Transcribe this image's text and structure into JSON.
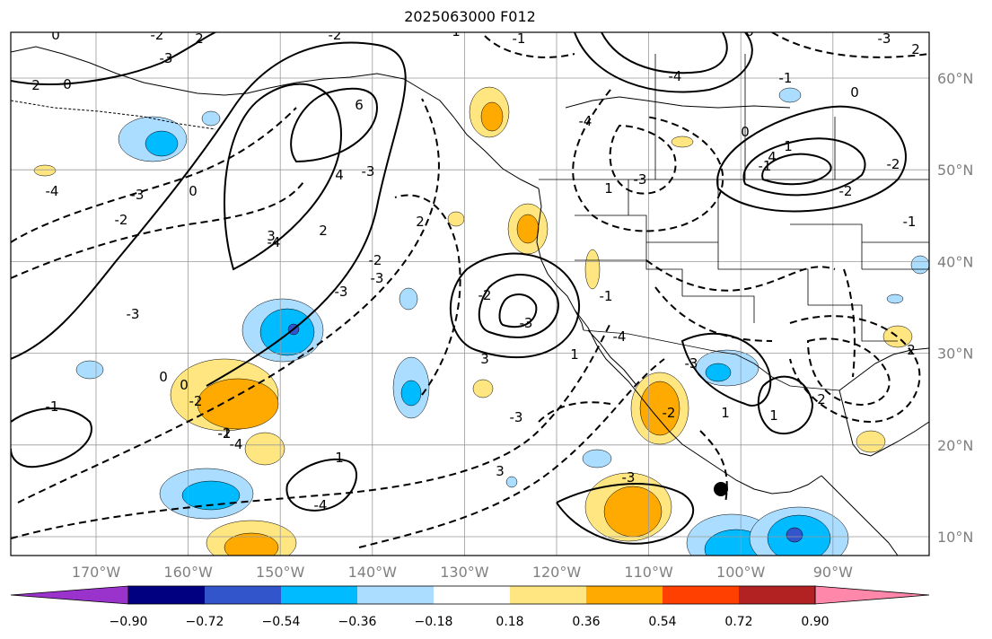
{
  "title": "2025063000 F012",
  "map": {
    "projection": "cylindrical lat-lon",
    "lon_range": [
      "180°W",
      "80°W"
    ],
    "lat_range": [
      "8°N",
      "65°N"
    ],
    "lon_ticks": [
      "170°W",
      "160°W",
      "150°W",
      "140°W",
      "130°W",
      "120°W",
      "110°W",
      "100°W",
      "90°W"
    ],
    "lat_ticks": [
      "60°N",
      "50°N",
      "40°N",
      "30°N",
      "20°N",
      "10°N"
    ],
    "gridlines": true,
    "coastlines": true,
    "state_borders": true
  },
  "contour_labels": [
    "0",
    "-2",
    "2",
    "-2",
    "1",
    "-1",
    "0",
    "-3",
    "2",
    "0",
    "-3",
    "2",
    "-4",
    "-3",
    "1",
    "6",
    "4",
    "-3",
    "-4",
    "2",
    "-3",
    "0",
    "-3",
    "-2",
    "-4",
    "-3",
    "-2",
    "2",
    "-3",
    "-2",
    "-2",
    "-3",
    "3",
    "-4",
    "-1",
    "0",
    "1",
    "-1",
    "0",
    "-2",
    "-2",
    "-1",
    "-2",
    "1",
    "1",
    "2",
    "-3",
    "1",
    "-1",
    "0",
    "0",
    "-2",
    "-1",
    "-4",
    "1",
    "-3",
    "3",
    "-4",
    "2",
    "-3",
    "-4",
    "-1",
    "4",
    "3"
  ],
  "colorbar": {
    "tick_labels": [
      "−0.90",
      "−0.72",
      "−0.54",
      "−0.36",
      "−0.18",
      "0.18",
      "0.36",
      "0.54",
      "0.72",
      "0.90"
    ],
    "colors": [
      "#9933cc",
      "#000080",
      "#3355cc",
      "#00bbff",
      "#aaddff",
      "#ffffff",
      "#ffe680",
      "#ffaa00",
      "#ff4000",
      "#b22222",
      "#ff88aa"
    ],
    "extend": "both"
  },
  "shading_colors": {
    "pos_low": "#ffe680",
    "pos_mid": "#ffaa00",
    "neg_low": "#aaddff",
    "neg_mid": "#00bbff",
    "neg_high": "#3355cc"
  },
  "marker": {
    "label": "marker-dot",
    "color": "#000000"
  }
}
